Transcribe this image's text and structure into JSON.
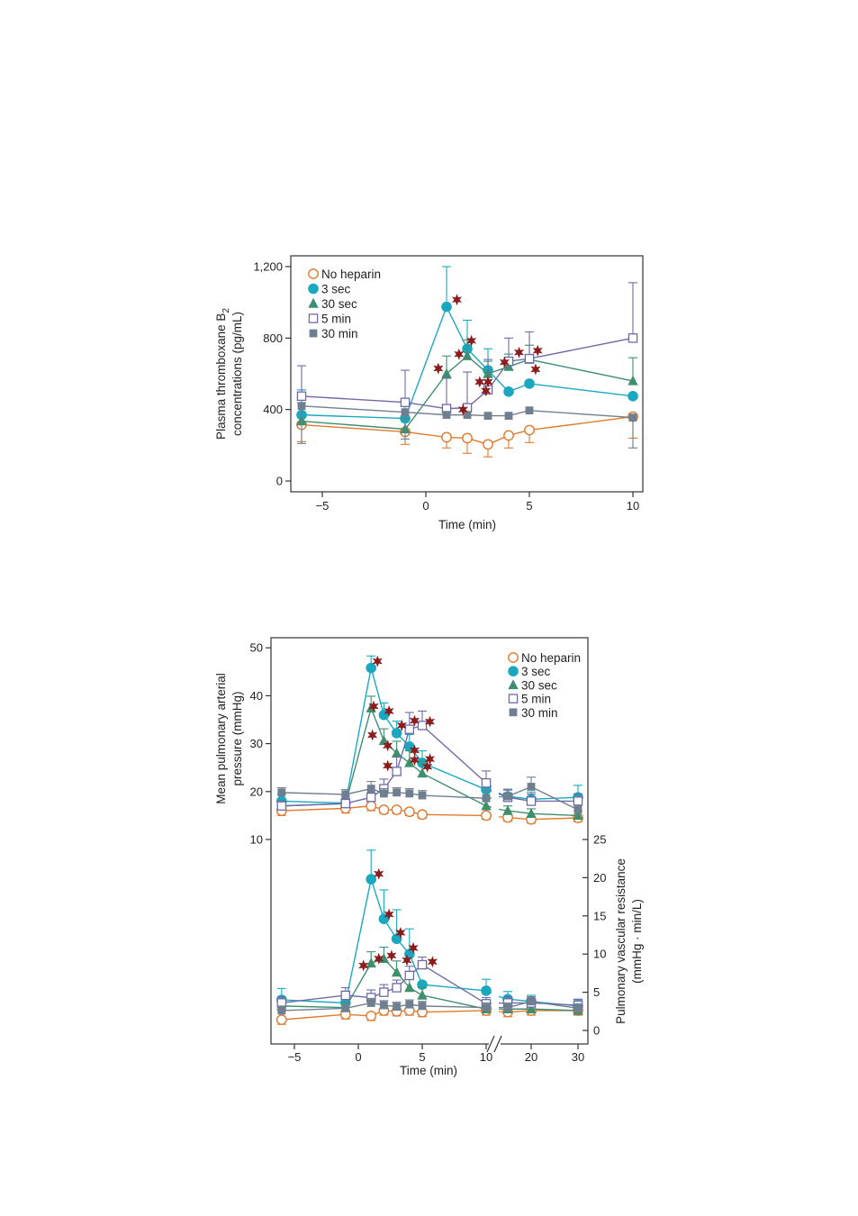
{
  "colors": {
    "no_heparin": "#e07a2e",
    "s3": "#1aa8c0",
    "s30": "#3f8f6e",
    "m5": "#6e6aa8",
    "m30": "#6f7f8f",
    "star": "#8a1c1c",
    "axis": "#333333"
  },
  "chart_data": [
    {
      "type": "line",
      "title": "",
      "xlabel": "Time (min)",
      "ylabel": "Plasma thromboxane B",
      "ylabel_sub": "2",
      "ylabel2": "concentrations (pg/mL)",
      "xlim": [
        -6.4,
        10.4
      ],
      "ylim": [
        0,
        1260
      ],
      "xticks": [
        -5,
        0,
        5,
        10
      ],
      "xtick_labels": [
        "−5",
        "0",
        "5",
        "10"
      ],
      "yticks": [
        0,
        400,
        800,
        1200
      ],
      "ytick_labels": [
        "0",
        "400",
        "800",
        "1,200"
      ],
      "legend_position": "top-left",
      "series": [
        {
          "name": "No heparin",
          "key": "no_heparin",
          "marker": "circle-open",
          "x": [
            -6,
            -1,
            1,
            2,
            3,
            4,
            5,
            10
          ],
          "y": [
            315,
            275,
            245,
            240,
            205,
            255,
            285,
            360
          ],
          "err": [
            95,
            70,
            60,
            85,
            70,
            70,
            70,
            120
          ],
          "err_dir": "down"
        },
        {
          "name": "3 sec",
          "key": "s3",
          "marker": "circle-filled",
          "x": [
            -6,
            -1,
            1,
            2,
            3,
            4,
            5,
            10
          ],
          "y": [
            370,
            350,
            975,
            740,
            620,
            500,
            545,
            475
          ],
          "err": [
            140,
            90,
            225,
            160,
            120,
            0,
            0,
            0
          ],
          "err_dir": "up"
        },
        {
          "name": "30 sec",
          "key": "s30",
          "marker": "triangle",
          "x": [
            -6,
            -1,
            1,
            2,
            3,
            4,
            5,
            10
          ],
          "y": [
            335,
            290,
            600,
            700,
            600,
            640,
            680,
            560
          ],
          "err": [
            100,
            60,
            100,
            90,
            70,
            70,
            80,
            130
          ],
          "err_dir": "up"
        },
        {
          "name": "5 min",
          "key": "m5",
          "marker": "square-open",
          "x": [
            -6,
            -1,
            1,
            2,
            3,
            4,
            5,
            10
          ],
          "y": [
            475,
            440,
            405,
            410,
            510,
            670,
            685,
            800
          ],
          "err": [
            170,
            180,
            170,
            200,
            170,
            130,
            150,
            310
          ],
          "err_dir": "up"
        },
        {
          "name": "30 min",
          "key": "m30",
          "marker": "square-filled",
          "x": [
            -6,
            -1,
            1,
            2,
            3,
            4,
            5,
            10
          ],
          "y": [
            420,
            385,
            370,
            370,
            365,
            365,
            395,
            355
          ],
          "err": [
            210,
            150,
            0,
            0,
            0,
            0,
            0,
            170
          ],
          "err_dir": "down"
        }
      ],
      "significance": [
        {
          "x": 1.5,
          "y": 1015
        },
        {
          "x": 0.6,
          "y": 630
        },
        {
          "x": 1.6,
          "y": 710
        },
        {
          "x": 2.2,
          "y": 785
        },
        {
          "x": 1.8,
          "y": 400
        },
        {
          "x": 2.6,
          "y": 555
        },
        {
          "x": 2.9,
          "y": 505
        },
        {
          "x": 3.0,
          "y": 555
        },
        {
          "x": 3.8,
          "y": 665
        },
        {
          "x": 4.5,
          "y": 720
        },
        {
          "x": 5.4,
          "y": 730
        },
        {
          "x": 5.3,
          "y": 625
        }
      ]
    },
    {
      "type": "line",
      "title": "",
      "xlabel": "Time (min)",
      "ylabel": "Mean pulmonary arterial",
      "ylabel2": "pressure (mmHg)",
      "xtick_labels": [
        "−5",
        "0",
        "5",
        "10",
        "20",
        "30"
      ],
      "yticks": [
        10,
        20,
        30,
        40,
        50
      ],
      "ytick_labels": [
        "10",
        "20",
        "30",
        "40",
        "50"
      ],
      "ylim": [
        10,
        52
      ],
      "axis_break": "between 10 and 15 min",
      "legend_position": "top-right",
      "series": [
        {
          "name": "No heparin",
          "key": "no_heparin",
          "marker": "circle-open",
          "x": [
            -6,
            -1,
            1,
            2,
            3,
            4,
            5,
            10,
            15,
            20,
            30
          ],
          "y": [
            16,
            16.5,
            17,
            16.2,
            16.2,
            15.8,
            15.2,
            15,
            14.6,
            14.2,
            14.5
          ],
          "err": [
            1,
            1,
            1,
            0.8,
            0.8,
            0.8,
            0.8,
            0.8,
            0.8,
            0.8,
            0.8
          ],
          "err_dir": "down"
        },
        {
          "name": "3 sec",
          "key": "s3",
          "marker": "circle-filled",
          "x": [
            -6,
            -1,
            1,
            2,
            3,
            4,
            5,
            10,
            15,
            20,
            30
          ],
          "y": [
            18,
            17.6,
            45.8,
            36,
            32.2,
            29.4,
            26,
            20.4,
            19,
            18.4,
            18.8
          ],
          "err": [
            1.5,
            1.5,
            2.5,
            2.5,
            2.5,
            2.5,
            2.5,
            2,
            1.5,
            1.5,
            2.5
          ],
          "err_dir": "up"
        },
        {
          "name": "30 sec",
          "key": "s30",
          "marker": "triangle",
          "x": [
            -6,
            -1,
            1,
            2,
            3,
            4,
            5,
            10,
            15,
            20,
            30
          ],
          "y": [
            17,
            17.5,
            37.4,
            30.6,
            28,
            26,
            23.8,
            17,
            16,
            15.4,
            15
          ],
          "err": [
            1,
            1,
            2.5,
            2.5,
            2.5,
            2.5,
            2.5,
            1.5,
            1,
            1,
            1
          ],
          "err_dir": "up"
        },
        {
          "name": "5 min",
          "key": "m5",
          "marker": "square-open",
          "x": [
            -6,
            -1,
            1,
            2,
            3,
            4,
            5,
            10,
            15,
            20,
            30
          ],
          "y": [
            17,
            17.5,
            18.8,
            20.6,
            24.2,
            33,
            33.8,
            21.8,
            18.8,
            18,
            18
          ],
          "err": [
            1,
            1,
            1.5,
            2,
            3,
            3.5,
            3,
            2.5,
            1.5,
            1.5,
            1.5
          ],
          "err_dir": "up"
        },
        {
          "name": "30 min",
          "key": "m30",
          "marker": "square-filled",
          "x": [
            -6,
            -1,
            1,
            2,
            3,
            4,
            5,
            10,
            15,
            20,
            30
          ],
          "y": [
            19.8,
            19.4,
            20.6,
            19.6,
            19.8,
            19.6,
            19.2,
            18.6,
            19,
            21,
            16.2
          ],
          "err": [
            1,
            1,
            1.5,
            1,
            1,
            1,
            1,
            1.5,
            1.5,
            2,
            1
          ],
          "err_dir": "up"
        }
      ],
      "significance": [
        {
          "x": 1.5,
          "y": 47.2
        },
        {
          "x": 1.2,
          "y": 37.8
        },
        {
          "x": 2.4,
          "y": 36.8
        },
        {
          "x": 1.1,
          "y": 31.8
        },
        {
          "x": 3.4,
          "y": 33.8
        },
        {
          "x": 4.4,
          "y": 34.8
        },
        {
          "x": 5.6,
          "y": 34.6
        },
        {
          "x": 2.3,
          "y": 29.6
        },
        {
          "x": 4.4,
          "y": 28.6
        },
        {
          "x": 2.3,
          "y": 25.4
        },
        {
          "x": 4.4,
          "y": 26.6
        },
        {
          "x": 5.6,
          "y": 26.8
        },
        {
          "x": 5.4,
          "y": 25.2
        }
      ]
    },
    {
      "type": "line",
      "title": "",
      "xlabel": "Time (min)",
      "ylabel": "Pulmonary vascular resistance",
      "ylabel2": "(mmHg · min/L)",
      "yticks": [
        0,
        5,
        10,
        15,
        20,
        25
      ],
      "ytick_labels": [
        "0",
        "5",
        "10",
        "15",
        "20",
        "25"
      ],
      "ylim": [
        -1.5,
        25
      ],
      "axis_side": "right",
      "series": [
        {
          "name": "No heparin",
          "key": "no_heparin",
          "marker": "circle-open",
          "x": [
            -6,
            -1,
            1,
            2,
            3,
            4,
            5,
            10,
            15,
            20,
            30
          ],
          "y": [
            1.4,
            2.1,
            1.9,
            2.6,
            2.5,
            2.6,
            2.4,
            2.6,
            2.4,
            2.6,
            2.6
          ],
          "err": [
            0.6,
            0.6,
            0.6,
            0.6,
            0.6,
            0.6,
            0.6,
            0.6,
            0.6,
            0.6,
            0.6
          ],
          "err_dir": "down"
        },
        {
          "name": "3 sec",
          "key": "s3",
          "marker": "circle-filled",
          "x": [
            -6,
            -1,
            1,
            2,
            3,
            4,
            5,
            10,
            15,
            20,
            30
          ],
          "y": [
            4,
            3.6,
            19.8,
            14.6,
            12,
            10,
            6,
            5.2,
            4.1,
            3.8,
            3.2
          ],
          "err": [
            1.5,
            1.5,
            3.8,
            3.8,
            3.8,
            3.3,
            0,
            1.5,
            1,
            0.8,
            0.8
          ],
          "err_dir": "up"
        },
        {
          "name": "30 sec",
          "key": "s30",
          "marker": "triangle",
          "x": [
            -6,
            -1,
            1,
            2,
            3,
            4,
            5,
            10,
            15,
            20,
            30
          ],
          "y": [
            3.2,
            3,
            8.8,
            9.4,
            7.6,
            5.6,
            4.6,
            2.8,
            2.8,
            2.8,
            2.6
          ],
          "err": [
            0.6,
            0.6,
            1.5,
            1.5,
            1.5,
            1.2,
            1,
            0.6,
            0.6,
            0.6,
            0.6
          ],
          "err_dir": "up"
        },
        {
          "name": "5 min",
          "key": "m5",
          "marker": "square-open",
          "x": [
            -6,
            -1,
            1,
            2,
            3,
            4,
            5,
            10,
            15,
            20,
            30
          ],
          "y": [
            3.6,
            4.6,
            4.3,
            5,
            5.6,
            7.2,
            8.6,
            3.5,
            3.6,
            3.6,
            3.3
          ],
          "err": [
            0.8,
            1,
            1,
            1,
            1,
            1.2,
            1,
            0.8,
            0.8,
            0.8,
            0.8
          ],
          "err_dir": "up"
        },
        {
          "name": "30 min",
          "key": "m30",
          "marker": "square-filled",
          "x": [
            -6,
            -1,
            1,
            2,
            3,
            4,
            5,
            10,
            15,
            20,
            30
          ],
          "y": [
            2.6,
            2.9,
            3.6,
            3.3,
            3.1,
            3.4,
            3.2,
            3,
            3,
            3.8,
            2.9
          ],
          "err": [
            0.6,
            0.6,
            0.6,
            0.6,
            0.6,
            0.6,
            0.6,
            0.6,
            0.6,
            0.6,
            0.6
          ],
          "err_dir": "up"
        }
      ],
      "significance": [
        {
          "x": 1.6,
          "y": 20.5
        },
        {
          "x": 2.4,
          "y": 15.2
        },
        {
          "x": 3.3,
          "y": 12.8
        },
        {
          "x": 4.3,
          "y": 10.8
        },
        {
          "x": 0.4,
          "y": 8.5
        },
        {
          "x": 1.6,
          "y": 9.4
        },
        {
          "x": 2.6,
          "y": 9.8
        },
        {
          "x": 3.8,
          "y": 9.2
        },
        {
          "x": 5.8,
          "y": 9.0
        }
      ]
    }
  ]
}
